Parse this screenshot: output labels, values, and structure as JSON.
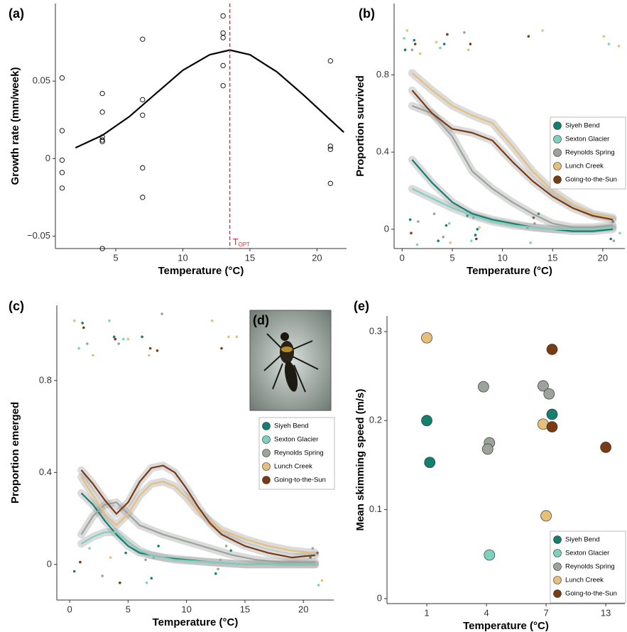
{
  "chart_data": [
    {
      "type": "scatter",
      "label": "(a)",
      "x_label": "Temperature (°C)",
      "y_label": "Growth rate (mm/week)",
      "xlim": [
        0.5,
        22.2
      ],
      "ylim": [
        -0.058,
        0.1
      ],
      "xticks": [
        5,
        10,
        15,
        20
      ],
      "yticks": [
        {
          "value": -0.05,
          "label": "−0.05"
        },
        0,
        0.05
      ],
      "x": [
        1,
        1,
        1,
        1,
        1,
        4,
        4,
        4,
        4,
        4,
        4,
        7,
        7,
        7,
        7,
        7,
        13,
        13,
        13,
        13,
        13,
        21,
        21,
        21,
        21
      ],
      "values": [
        0.052,
        0.018,
        -0.001,
        -0.009,
        -0.019,
        0.042,
        0.03,
        0.014,
        0.012,
        0.011,
        -0.058,
        0.077,
        0.038,
        0.028,
        -0.006,
        -0.025,
        0.092,
        0.081,
        0.078,
        0.06,
        0.047,
        0.063,
        0.008,
        0.006,
        -0.016
      ],
      "color": "#000000",
      "fit": {
        "x": [
          2,
          4,
          6,
          8,
          10,
          12,
          13.5,
          15,
          17,
          19,
          21,
          22
        ],
        "values": [
          0.007,
          0.015,
          0.027,
          0.042,
          0.057,
          0.067,
          0.07,
          0.067,
          0.056,
          0.041,
          0.025,
          0.017
        ],
        "color": "#000000"
      },
      "vline": {
        "x": 13.5,
        "color": "#e0313a",
        "text": "T",
        "sub": "OPT"
      }
    },
    {
      "type": "line",
      "label": "(b)",
      "x_label": "Temperature (°C)",
      "y_label": "Proportion survived",
      "xlim": [
        -0.8,
        22.2
      ],
      "ylim": [
        -0.1,
        1.17
      ],
      "xticks": [
        0,
        5,
        10,
        15,
        20
      ],
      "yticks": [
        0,
        0.4,
        0.8
      ],
      "series": [
        {
          "name": "Siyeh Bend",
          "color": "#137f6e",
          "x": [
            1,
            3,
            5,
            7,
            9,
            11,
            13,
            15,
            17,
            19,
            21
          ],
          "values": [
            0.36,
            0.24,
            0.14,
            0.08,
            0.05,
            0.03,
            0.01,
            0.0,
            -0.01,
            -0.01,
            0.0
          ],
          "points": {
            "x": [
              0.3,
              1.2,
              3.6,
              4.4,
              6.5,
              7.3,
              12.5,
              13.6,
              20.8,
              0.8,
              4.2,
              7.5
            ],
            "y": [
              0.93,
              0.98,
              -0.06,
              0.02,
              0.07,
              -0.03,
              0.01,
              0.08,
              -0.05,
              0.05,
              0.96,
              0.0
            ]
          }
        },
        {
          "name": "Sexton Glacier",
          "color": "#7fd1bf",
          "x": [
            1,
            3,
            5,
            7,
            9,
            11,
            13,
            15,
            17,
            19,
            21
          ],
          "values": [
            0.21,
            0.16,
            0.11,
            0.07,
            0.04,
            0.02,
            0.01,
            0.0,
            0.0,
            0.0,
            0.01
          ],
          "points": {
            "x": [
              0.2,
              1.5,
              3.8,
              4.7,
              6.9,
              12.8,
              20.6,
              21.7
            ],
            "y": [
              0.99,
              -0.08,
              0.94,
              0.03,
              -0.06,
              -0.07,
              0.96,
              -0.02
            ]
          }
        },
        {
          "name": "Reynolds Spring",
          "color": "#9ba39a",
          "x": [
            1,
            3,
            5,
            7,
            9,
            11,
            13,
            15,
            17,
            19,
            21
          ],
          "values": [
            0.64,
            0.6,
            0.48,
            0.3,
            0.21,
            0.14,
            0.08,
            0.03,
            0.01,
            0.01,
            0.02
          ],
          "points": {
            "x": [
              1.0,
              1.6,
              4.1,
              6.2,
              7.1,
              13.2,
              21.1,
              3.2
            ],
            "y": [
              0.93,
              0.04,
              -0.04,
              1.02,
              0.06,
              0.03,
              -0.06,
              0.08
            ]
          }
        },
        {
          "name": "Lunch Creek",
          "color": "#e6bf7c",
          "x": [
            1,
            3,
            5,
            7,
            9,
            11,
            13,
            15,
            17,
            19,
            21
          ],
          "values": [
            0.81,
            0.72,
            0.64,
            0.59,
            0.55,
            0.43,
            0.3,
            0.2,
            0.13,
            0.08,
            0.06
          ],
          "points": {
            "x": [
              0.5,
              1.8,
              3.4,
              4.8,
              6.6,
              7.7,
              14.0,
              20.1,
              21.6
            ],
            "y": [
              1.03,
              0.91,
              0.97,
              -0.07,
              0.93,
              0.01,
              1.03,
              1.0,
              0.95
            ]
          }
        },
        {
          "name": "Going-to-the-Sun",
          "color": "#7a3b12",
          "x": [
            1,
            3,
            5,
            7,
            9,
            11,
            13,
            15,
            17,
            19,
            21
          ],
          "values": [
            0.72,
            0.6,
            0.52,
            0.5,
            0.46,
            0.35,
            0.25,
            0.17,
            0.11,
            0.07,
            0.05
          ],
          "points": {
            "x": [
              1.3,
              4.5,
              6.8,
              12.6,
              13.1,
              21.0,
              7.4,
              0.9
            ],
            "y": [
              0.96,
              1.01,
              0.96,
              1.0,
              0.06,
              0.04,
              -0.05,
              -0.02
            ]
          }
        }
      ]
    },
    {
      "type": "line",
      "label": "(c)",
      "x_label": "Temperature (°C)",
      "y_label": "Proportion emerged",
      "xlim": [
        -1.1,
        22.6
      ],
      "ylim": [
        -0.155,
        1.127
      ],
      "xticks": [
        0,
        5,
        10,
        15,
        20
      ],
      "yticks": [
        0,
        0.4,
        0.8
      ],
      "series": [
        {
          "name": "Siyeh Bend",
          "color": "#137f6e",
          "x": [
            1,
            2,
            3,
            4,
            5,
            6,
            8,
            10,
            12,
            15,
            18,
            21
          ],
          "values": [
            0.31,
            0.26,
            0.19,
            0.13,
            0.08,
            0.05,
            0.03,
            0.02,
            0.01,
            0.0,
            0.0,
            0.0
          ],
          "points": {
            "x": [
              1.1,
              3.8,
              6.2,
              7.0,
              12.5,
              13.8,
              20.6,
              0.4,
              4.8,
              7.6
            ],
            "y": [
              1.05,
              0.99,
              0.99,
              -0.06,
              -0.04,
              0.06,
              0.03,
              -0.03,
              0.05,
              0.08
            ]
          }
        },
        {
          "name": "Sexton Glacier",
          "color": "#7fd1bf",
          "x": [
            1,
            2,
            3,
            4,
            5,
            6,
            7,
            9,
            12,
            15,
            21
          ],
          "values": [
            0.09,
            0.12,
            0.14,
            0.14,
            0.1,
            0.06,
            0.04,
            0.02,
            0.01,
            0.0,
            0.0
          ],
          "points": {
            "x": [
              0.8,
              3.4,
              4.6,
              6.6,
              12.9,
              21.3,
              1.7,
              7.2
            ],
            "y": [
              0.94,
              1.06,
              0.98,
              -0.08,
              0.02,
              -0.09,
              0.07,
              0.03
            ]
          }
        },
        {
          "name": "Reynolds Spring",
          "color": "#9ba39a",
          "x": [
            1,
            2,
            3,
            4,
            5,
            6,
            8,
            10,
            12,
            14,
            16,
            18,
            21
          ],
          "values": [
            0.13,
            0.21,
            0.26,
            0.27,
            0.22,
            0.17,
            0.13,
            0.1,
            0.07,
            0.04,
            0.02,
            0.01,
            0.01
          ],
          "points": {
            "x": [
              1.5,
              4.2,
              7.9,
              12.7,
              20.8,
              2.8,
              6.5,
              13.4
            ],
            "y": [
              0.96,
              0.96,
              1.09,
              -0.02,
              0.07,
              -0.05,
              0.02,
              0.08
            ]
          }
        },
        {
          "name": "Lunch Creek",
          "color": "#e6bf7c",
          "x": [
            1,
            3,
            4,
            5,
            6,
            7,
            8,
            9,
            10,
            11,
            13,
            15,
            17,
            19,
            21
          ],
          "values": [
            0.38,
            0.22,
            0.17,
            0.22,
            0.3,
            0.35,
            0.36,
            0.34,
            0.29,
            0.23,
            0.15,
            0.11,
            0.08,
            0.06,
            0.05
          ],
          "points": {
            "x": [
              0.4,
              2.0,
              5.0,
              6.8,
              12.2,
              14.3,
              21.6,
              3.5,
              13.6
            ],
            "y": [
              1.06,
              0.91,
              0.98,
              0.91,
              1.06,
              0.99,
              -0.07,
              0.03,
              0.99
            ]
          }
        },
        {
          "name": "Going-to-the-Sun",
          "color": "#7a3b12",
          "x": [
            1,
            2,
            3,
            4,
            5,
            6,
            7,
            8,
            9,
            10,
            11,
            12,
            13,
            15,
            17,
            19,
            21
          ],
          "values": [
            0.41,
            0.35,
            0.28,
            0.22,
            0.27,
            0.36,
            0.42,
            0.43,
            0.4,
            0.33,
            0.25,
            0.18,
            0.13,
            0.08,
            0.05,
            0.03,
            0.04
          ],
          "points": {
            "x": [
              1.2,
              3.9,
              6.9,
              7.5,
              13.0,
              21.2,
              4.3,
              0.9
            ],
            "y": [
              1.03,
              0.98,
              0.94,
              0.93,
              0.94,
              0.05,
              -0.08,
              0.01
            ]
          }
        }
      ]
    },
    {
      "type": "image",
      "label": "(d)"
    },
    {
      "type": "scatter",
      "label": "(e)",
      "x_label": "Temperature (°C)",
      "y_label": "Mean skimming speed (m/s)",
      "xlim": [
        0.333,
        4.32
      ],
      "ylim": [
        -0.0056,
        0.3175
      ],
      "xticks": [
        {
          "value": 1,
          "label": "1"
        },
        {
          "value": 2,
          "label": "4"
        },
        {
          "value": 3,
          "label": "7"
        },
        {
          "value": 4,
          "label": "13"
        }
      ],
      "yticks": [
        0,
        0.1,
        0.2,
        0.3
      ],
      "series": [
        {
          "name": "Siyeh Bend",
          "color": "#137f6e",
          "x": [
            1.0,
            1.05,
            3.1
          ],
          "values": [
            0.2,
            0.153,
            0.207
          ]
        },
        {
          "name": "Sexton Glacier",
          "color": "#7fd1bf",
          "x": [
            2.05
          ],
          "values": [
            0.049
          ]
        },
        {
          "name": "Reynolds Spring",
          "color": "#9ba39a",
          "x": [
            1.95,
            2.05,
            2.02,
            2.95,
            3.05
          ],
          "values": [
            0.238,
            0.175,
            0.168,
            0.239,
            0.23
          ]
        },
        {
          "name": "Lunch Creek",
          "color": "#e6bf7c",
          "x": [
            1.0,
            2.95,
            3.0
          ],
          "values": [
            0.293,
            0.196,
            0.093
          ]
        },
        {
          "name": "Going-to-the-Sun",
          "color": "#7a3b12",
          "x": [
            3.1,
            3.1,
            4.0
          ],
          "values": [
            0.28,
            0.193,
            0.17
          ]
        }
      ]
    }
  ]
}
